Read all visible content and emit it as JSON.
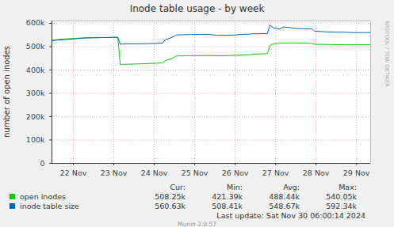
{
  "chart_data": {
    "type": "line",
    "title": "Inode table usage - by week",
    "y_label": "number of open inodes",
    "x": [
      21.97,
      22.1,
      22.3,
      22.5,
      22.8,
      23.0,
      23.3,
      23.6,
      23.66,
      23.7,
      23.9,
      24.1,
      24.4,
      24.7,
      24.78,
      24.95,
      25.05,
      25.4,
      25.8,
      26.05,
      26.4,
      26.75,
      27.0,
      27.3,
      27.36,
      27.45,
      27.6,
      27.7,
      28.0,
      28.4,
      28.47,
      28.8,
      29.2,
      29.5,
      29.85
    ],
    "xlim": [
      21.97,
      29.85
    ],
    "xticks": [
      {
        "value": 22.5,
        "label": "22 Nov"
      },
      {
        "value": 23.5,
        "label": "23 Nov"
      },
      {
        "value": 24.5,
        "label": "24 Nov"
      },
      {
        "value": 25.5,
        "label": "25 Nov"
      },
      {
        "value": 26.5,
        "label": "26 Nov"
      },
      {
        "value": 27.5,
        "label": "27 Nov"
      },
      {
        "value": 28.5,
        "label": "28 Nov"
      },
      {
        "value": 29.5,
        "label": "29 Nov"
      }
    ],
    "ylim": [
      0,
      610000
    ],
    "yticks": [
      0,
      {
        "value": 100000,
        "label": "100k"
      },
      {
        "value": 200000,
        "label": "200k"
      },
      {
        "value": 300000,
        "label": "300k"
      },
      {
        "value": 400000,
        "label": "400k"
      },
      {
        "value": 500000,
        "label": "500k"
      },
      {
        "value": 600000,
        "label": "600k"
      }
    ],
    "grid": true,
    "legend": "bottom",
    "stats_columns": [
      "Cur:",
      "Min:",
      "Avg:",
      "Max:"
    ],
    "series": [
      {
        "name": "open inodes",
        "color": "#00cc00",
        "values": [
          528000,
          530000,
          533000,
          535000,
          538000,
          538000,
          539000,
          540050,
          421390,
          424000,
          425000,
          426000,
          428000,
          430000,
          440000,
          450000,
          460000,
          461000,
          462000,
          461000,
          462000,
          464000,
          468000,
          470000,
          505000,
          512000,
          515000,
          516000,
          516000,
          514000,
          510000,
          509000,
          508000,
          508000,
          508250
        ],
        "stats": [
          "508.25k",
          "421.39k",
          "488.44k",
          "540.05k"
        ]
      },
      {
        "name": "inode table size",
        "color": "#0066b3",
        "values": [
          525000,
          528000,
          530000,
          533000,
          537000,
          538000,
          539000,
          540000,
          510000,
          511000,
          512000,
          512000,
          513000,
          515000,
          530000,
          540000,
          550000,
          552000,
          553000,
          549000,
          549000,
          553000,
          555000,
          556000,
          592340,
          580000,
          575000,
          585000,
          578000,
          576000,
          566000,
          563000,
          562000,
          560000,
          560630
        ],
        "stats": [
          "560.63k",
          "508.41k",
          "548.67k",
          "592.34k"
        ]
      }
    ],
    "last_update": "Last update: Sat Nov 30 06:00:14 2024",
    "footer": "Munin 2.0.57",
    "watermark": "RRDTOOL / TOBI OETIKER"
  }
}
